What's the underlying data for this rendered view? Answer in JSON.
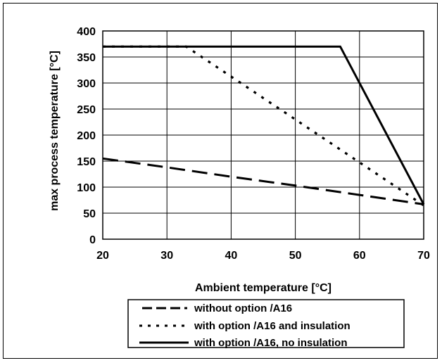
{
  "chart_data": {
    "type": "line",
    "title": "",
    "xlabel": "Ambient temperature [°C]",
    "ylabel": "max process temperature [°C]",
    "xlim": [
      20,
      70
    ],
    "ylim": [
      0,
      400
    ],
    "xticks": [
      "20",
      "30",
      "40",
      "50",
      "60",
      "70"
    ],
    "yticks": [
      "0",
      "50",
      "100",
      "150",
      "200",
      "250",
      "300",
      "350",
      "400"
    ],
    "grid": true,
    "legend_position": "bottom",
    "series": [
      {
        "name": "without option /A16",
        "style": "dashed",
        "x": [
          20,
          30,
          40,
          50,
          60,
          70
        ],
        "y": [
          155,
          138,
          120,
          103,
          85,
          67
        ]
      },
      {
        "name": "with option /A16 and insulation",
        "style": "dotted",
        "x": [
          20,
          33,
          50,
          70
        ],
        "y": [
          370,
          370,
          230,
          65
        ]
      },
      {
        "name": "with option /A16, no insulation",
        "style": "solid",
        "x": [
          20,
          57,
          70
        ],
        "y": [
          370,
          370,
          67
        ]
      }
    ]
  }
}
